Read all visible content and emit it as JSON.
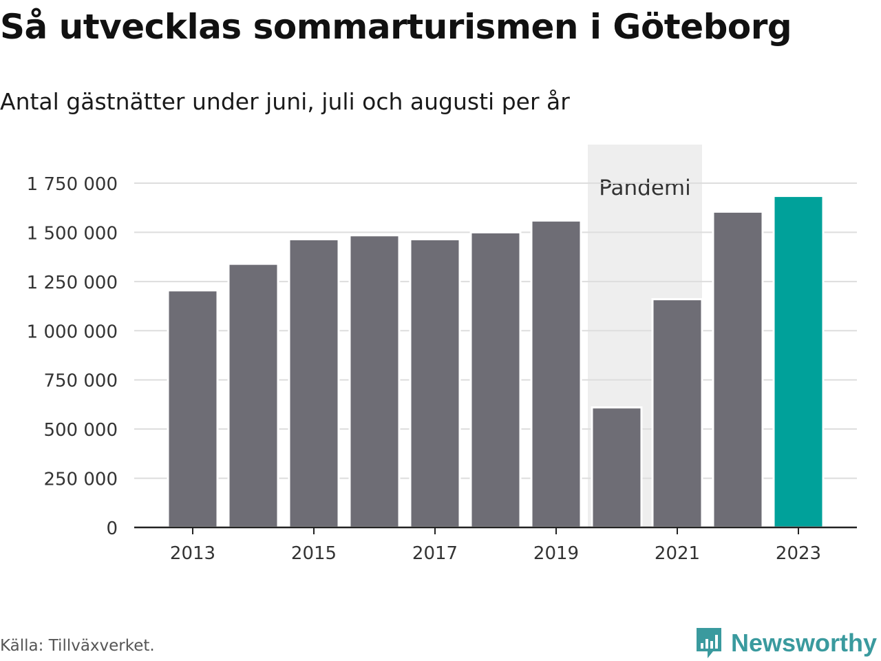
{
  "header": {
    "title": "Så utvecklas sommarturismen i Göteborg",
    "subtitle": "Antal gästnätter under juni, juli och augusti per år"
  },
  "footer": {
    "source": "Källa: Tillväxverket.",
    "brand": "Newsworthy",
    "brand_icon": "bar-chart-speech-bubble-icon"
  },
  "colors": {
    "bar": "#6e6d75",
    "highlight": "#00a19a",
    "band": "#eeeeee",
    "grid": "#dddddd",
    "brand": "#3a9a9e"
  },
  "chart_data": {
    "type": "bar",
    "categories": [
      "2013",
      "2014",
      "2015",
      "2016",
      "2017",
      "2018",
      "2019",
      "2020",
      "2021",
      "2022",
      "2023"
    ],
    "values": [
      1205000,
      1340000,
      1465000,
      1485000,
      1465000,
      1500000,
      1560000,
      610000,
      1160000,
      1605000,
      1685000
    ],
    "highlight": "2023",
    "x_tick_labels": [
      "2013",
      "2015",
      "2017",
      "2019",
      "2021",
      "2023"
    ],
    "y_ticks": [
      0,
      250000,
      500000,
      750000,
      1000000,
      1250000,
      1500000,
      1750000
    ],
    "y_tick_labels": [
      "0",
      "250 000",
      "500 000",
      "750 000",
      "1 000 000",
      "1 250 000",
      "1 500 000",
      "1 750 000"
    ],
    "ylim": [
      0,
      1750000
    ],
    "grid": true,
    "annotations": [
      {
        "label": "Pandemi",
        "from": "2020",
        "to": "2021"
      }
    ]
  }
}
